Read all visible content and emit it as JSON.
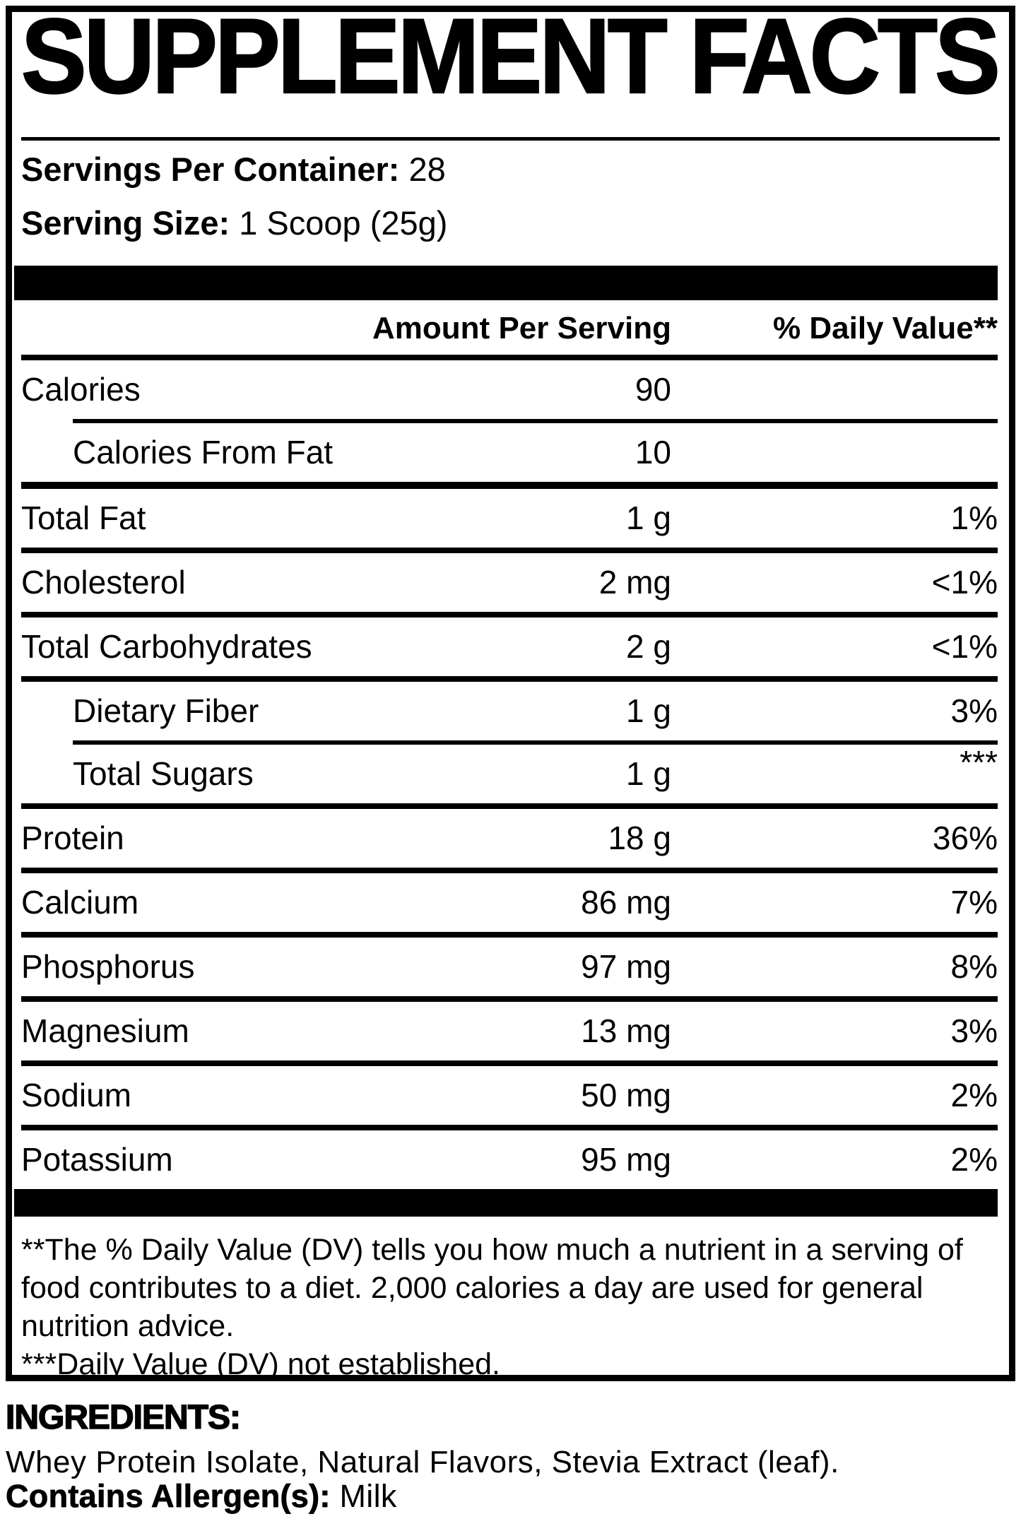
{
  "panel": {
    "title": "SUPPLEMENT FACTS",
    "servings_per_container_label": "Servings Per Container:",
    "servings_per_container_value": "28",
    "serving_size_label": "Serving Size:",
    "serving_size_value": "1 Scoop (25g)",
    "col_amount": "Amount Per Serving",
    "col_dv": "% Daily Value**",
    "rows": [
      {
        "name": "Calories",
        "amount": "90",
        "dv": "",
        "indent": false,
        "dv_top": false,
        "sep": "thin-indent"
      },
      {
        "name": "Calories From Fat",
        "amount": "10",
        "dv": "",
        "indent": true,
        "dv_top": false,
        "sep": "thick"
      },
      {
        "name": "Total Fat",
        "amount": "1 g",
        "dv": "1%",
        "indent": false,
        "dv_top": false,
        "sep": "normal"
      },
      {
        "name": "Cholesterol",
        "amount": "2 mg",
        "dv": "<1%",
        "indent": false,
        "dv_top": false,
        "sep": "normal"
      },
      {
        "name": "Total Carbohydrates",
        "amount": "2 g",
        "dv": "<1%",
        "indent": false,
        "dv_top": false,
        "sep": "normal"
      },
      {
        "name": "Dietary Fiber",
        "amount": "1 g",
        "dv": "3%",
        "indent": true,
        "dv_top": false,
        "sep": "thin-indent"
      },
      {
        "name": "Total Sugars",
        "amount": "1 g",
        "dv": "***",
        "indent": true,
        "dv_top": true,
        "sep": "normal"
      },
      {
        "name": "Protein",
        "amount": "18 g",
        "dv": "36%",
        "indent": false,
        "dv_top": false,
        "sep": "normal"
      },
      {
        "name": "Calcium",
        "amount": "86 mg",
        "dv": "7%",
        "indent": false,
        "dv_top": false,
        "sep": "normal"
      },
      {
        "name": "Phosphorus",
        "amount": "97 mg",
        "dv": "8%",
        "indent": false,
        "dv_top": false,
        "sep": "normal"
      },
      {
        "name": "Magnesium",
        "amount": "13 mg",
        "dv": "3%",
        "indent": false,
        "dv_top": false,
        "sep": "normal"
      },
      {
        "name": "Sodium",
        "amount": "50 mg",
        "dv": "2%",
        "indent": false,
        "dv_top": false,
        "sep": "normal"
      },
      {
        "name": "Potassium",
        "amount": "95 mg",
        "dv": "2%",
        "indent": false,
        "dv_top": false,
        "sep": "none"
      }
    ],
    "footnote_dv": "**The % Daily Value (DV) tells you how much a nutrient in a serving of food contributes to a diet. 2,000 calories a day are used for general nutrition advice.",
    "footnote_not_established": "***Daily Value (DV) not established."
  },
  "ingredients": {
    "heading": "INGREDIENTS:",
    "list": "Whey Protein Isolate, Natural Flavors, Stevia Extract (leaf).",
    "allergen_label": "Contains Allergen(s):",
    "allergen_value": "Milk"
  }
}
